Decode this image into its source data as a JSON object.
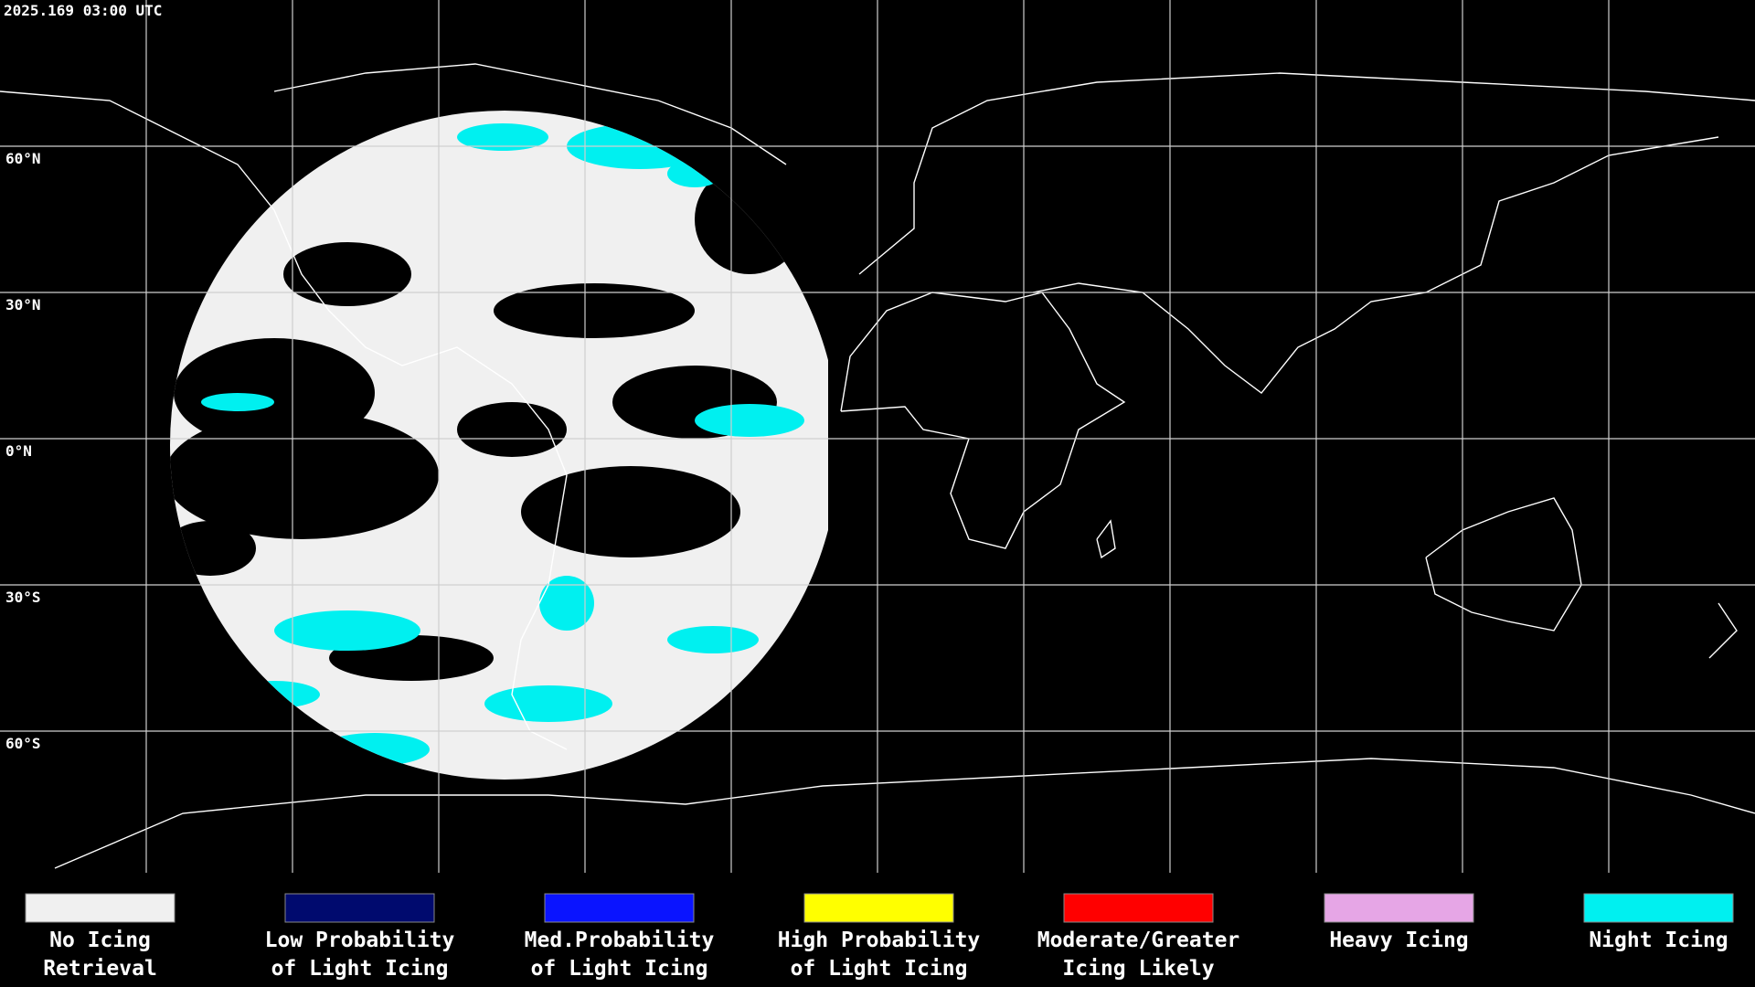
{
  "header": {
    "timestamp": "2025.169 03:00 UTC"
  },
  "map": {
    "latitude_labels": [
      "60°N",
      "30°N",
      "0°N",
      "30°S",
      "60°S"
    ]
  },
  "legend": {
    "items": [
      {
        "lines": [
          "No Icing",
          "Retrieval"
        ],
        "color": "#f0f0f0"
      },
      {
        "lines": [
          "Low Probability",
          "of Light Icing"
        ],
        "color": "#000a6e"
      },
      {
        "lines": [
          "Med.Probability",
          "of Light Icing"
        ],
        "color": "#0a14ff"
      },
      {
        "lines": [
          "High Probability",
          "of Light Icing"
        ],
        "color": "#ffff00"
      },
      {
        "lines": [
          "Moderate/Greater",
          "Icing Likely"
        ],
        "color": "#ff0000"
      },
      {
        "lines": [
          "Heavy Icing"
        ],
        "color": "#e6a6e6"
      },
      {
        "lines": [
          "Night Icing"
        ],
        "color": "#00f0f0"
      }
    ]
  }
}
